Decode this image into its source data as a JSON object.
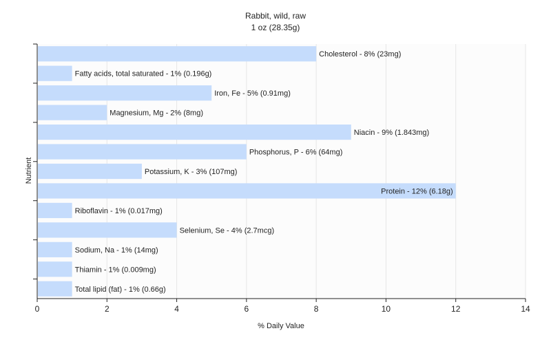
{
  "chart_data": {
    "type": "bar",
    "orientation": "horizontal",
    "title": "Rabbit, wild, raw",
    "subtitle": "1 oz (28.35g)",
    "xlabel": "% Daily Value",
    "ylabel": "Nutrient",
    "xlim": [
      0,
      14
    ],
    "xticks": [
      0,
      2,
      4,
      6,
      8,
      10,
      12,
      14
    ],
    "grid": true,
    "bar_color": "#c5dcfc",
    "categories": [
      "Cholesterol - 8% (23mg)",
      "Fatty acids, total saturated - 1% (0.196g)",
      "Iron, Fe - 5% (0.91mg)",
      "Magnesium, Mg - 2% (8mg)",
      "Niacin - 9% (1.843mg)",
      "Phosphorus, P - 6% (64mg)",
      "Potassium, K - 3% (107mg)",
      "Protein - 12% (6.18g)",
      "Riboflavin - 1% (0.017mg)",
      "Selenium, Se - 4% (2.7mcg)",
      "Sodium, Na - 1% (14mg)",
      "Thiamin - 1% (0.009mg)",
      "Total lipid (fat) - 1% (0.66g)"
    ],
    "values": [
      8,
      1,
      5,
      2,
      9,
      6,
      3,
      12,
      1,
      4,
      1,
      1,
      1
    ]
  }
}
